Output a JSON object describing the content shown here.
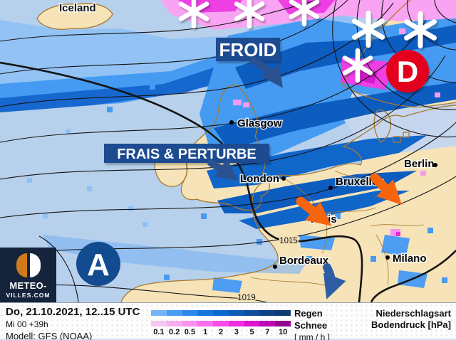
{
  "map": {
    "region_labels": {
      "iceland": "Iceland"
    },
    "annotations": {
      "froid": "FROID",
      "frais": "FRAIS & PERTURBE"
    },
    "pressure_centers": {
      "low": "D",
      "high": "A"
    },
    "isobar_labels": {
      "i1015": "1015",
      "i1019": "1019"
    },
    "cities": {
      "glasgow": "Glasgow",
      "london": "London",
      "bruxelles": "Bruxelles",
      "berlin": "Berlin",
      "paris": "Paris",
      "bordeaux": "Bordeaux",
      "milano": "Milano"
    }
  },
  "footer": {
    "valid_time": "Do, 21.10.2021, 12..15 UTC",
    "run": "Mi 00 +39h",
    "model": "Modell: GFS (NOAA)",
    "legend": {
      "rain_label": "Regen",
      "snow_label": "Schnee",
      "unit_label": "[ mm / h ]",
      "ticks": [
        "0.1",
        "0.2",
        "0.5",
        "1",
        "2",
        "3",
        "5",
        "7",
        "10"
      ],
      "rain_colors": [
        "#74b5f8",
        "#4a9cf5",
        "#2e88ec",
        "#1577de",
        "#0b69cd",
        "#0c5cb5",
        "#0d4f9d",
        "#0f4386",
        "#113a70"
      ],
      "snow_colors": [
        "#f8c6f2",
        "#f9adf1",
        "#fa92f0",
        "#fb70ee",
        "#f84de9",
        "#ef2ce1",
        "#de13d0",
        "#bc0ab6",
        "#94088f"
      ]
    },
    "right_title_1": "Niederschlagsart",
    "right_title_2": "Bodendruck [hPa]"
  },
  "logo": {
    "line1": "METEO-",
    "line2": "VILLES.COM"
  },
  "colors": {
    "banner_navy": "#1d4c92",
    "low_center_red": "#e2051b",
    "high_center_navy": "#134b90",
    "arrow_orange": "#f5650d",
    "arrow_blue": "#2d5ea4",
    "land_tan": "#f6e3b8",
    "sea_light_blue": "#b7d0ec",
    "coast_brown": "#a87a30",
    "snow_pink": "#f8a4f2"
  }
}
